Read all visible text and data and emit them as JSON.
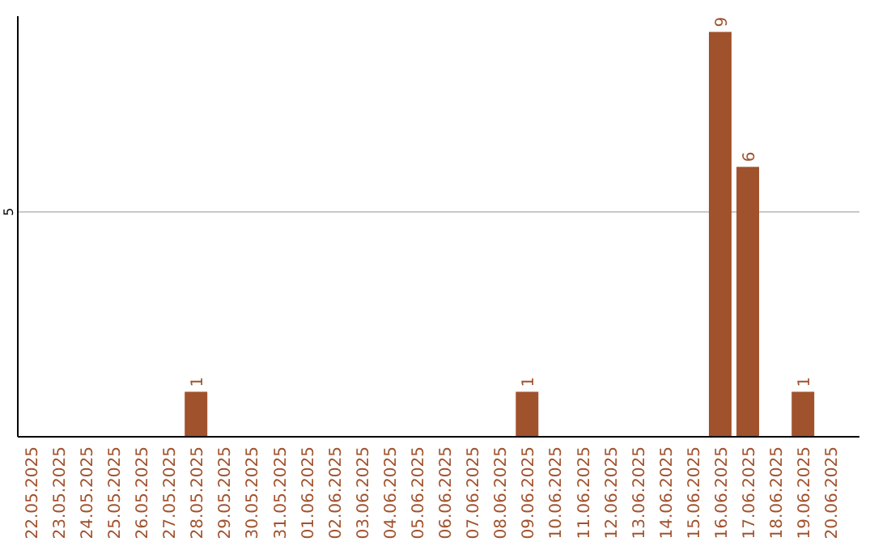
{
  "chart_data": {
    "type": "bar",
    "categories": [
      "22.05.2025",
      "23.05.2025",
      "24.05.2025",
      "25.05.2025",
      "26.05.2025",
      "27.05.2025",
      "28.05.2025",
      "29.05.2025",
      "30.05.2025",
      "31.05.2025",
      "01.06.2025",
      "02.06.2025",
      "03.06.2025",
      "04.06.2025",
      "05.06.2025",
      "06.06.2025",
      "07.06.2025",
      "08.06.2025",
      "09.06.2025",
      "10.06.2025",
      "11.06.2025",
      "12.06.2025",
      "13.06.2025",
      "14.06.2025",
      "15.06.2025",
      "16.06.2025",
      "17.06.2025",
      "18.06.2025",
      "19.06.2025",
      "20.06.2025"
    ],
    "values": [
      0,
      0,
      0,
      0,
      0,
      0,
      1,
      0,
      0,
      0,
      0,
      0,
      0,
      0,
      0,
      0,
      0,
      0,
      1,
      0,
      0,
      0,
      0,
      0,
      0,
      9,
      6,
      0,
      1,
      0
    ],
    "value_labels": [
      null,
      null,
      null,
      null,
      null,
      null,
      "1",
      null,
      null,
      null,
      null,
      null,
      null,
      null,
      null,
      null,
      null,
      null,
      "1",
      null,
      null,
      null,
      null,
      null,
      null,
      "9",
      "6",
      null,
      "1",
      null
    ],
    "color": "#a0522d",
    "ylim": [
      0,
      9.35
    ],
    "yticks": [
      5
    ],
    "grid": "y"
  }
}
